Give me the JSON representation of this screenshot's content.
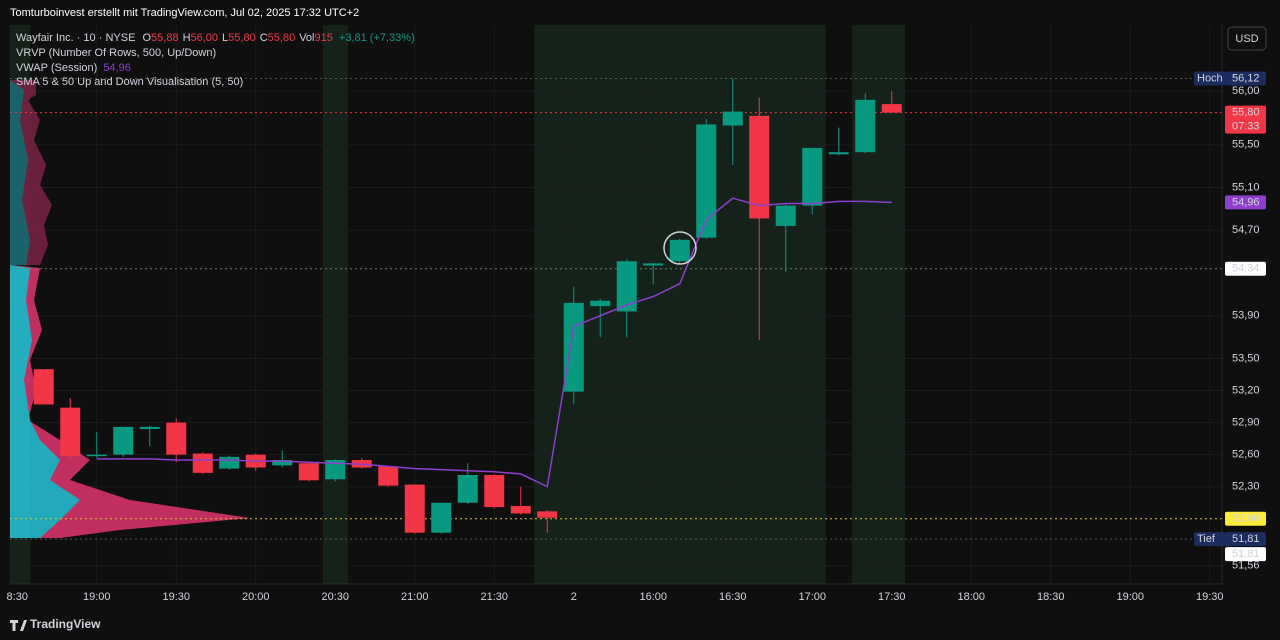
{
  "chart_data": {
    "type": "candlestick",
    "title": "Tomturboinvest erstellt mit TradingView.com, Jul 02, 2025 17:32 UTC+2",
    "currency": "USD",
    "brand": "TradingView",
    "legend": {
      "symbol": "Wayfair Inc. · 10 · NYSE",
      "fields": [
        {
          "key": "O",
          "value": "55,88"
        },
        {
          "key": "H",
          "value": "56,00"
        },
        {
          "key": "L",
          "value": "55,80"
        },
        {
          "key": "C",
          "value": "55,80"
        },
        {
          "key": "Vol",
          "value": "915"
        }
      ],
      "change": "+3,81 (+7,33%)"
    },
    "indicators": [
      {
        "name": "VRVP (Number Of Rows, 500, Up/Down)"
      },
      {
        "name": "VWAP (Session)",
        "value": "54,96"
      },
      {
        "name": "SMA 5 & 50 Up and Down Visualisation (5, 50)"
      }
    ],
    "categories": [
      "8:30",
      null,
      null,
      "19:00",
      null,
      null,
      "19:30",
      null,
      null,
      "20:00",
      null,
      null,
      "20:30",
      null,
      null,
      "21:00",
      null,
      null,
      "21:30",
      null,
      null,
      "2",
      null,
      null,
      "16:00",
      null,
      null,
      "16:30",
      null,
      null,
      "17:00",
      null,
      null,
      "17:30",
      null,
      null,
      "18:00",
      null,
      null,
      "18:30",
      null,
      null,
      "19:00",
      null,
      null,
      "19:30"
    ],
    "open": [
      null,
      53.4,
      53.04,
      52.59,
      52.6,
      52.84,
      52.9,
      52.61,
      52.47,
      52.6,
      52.5,
      52.52,
      52.37,
      52.55,
      52.49,
      52.32,
      51.87,
      52.15,
      52.41,
      52.12,
      52.07,
      53.19,
      53.99,
      53.94,
      54.37,
      54.41,
      54.63,
      55.68,
      55.77,
      54.74,
      54.93,
      55.41,
      55.43,
      55.88,
      null,
      null,
      null,
      null,
      null,
      null,
      null,
      null,
      null,
      null,
      null,
      null
    ],
    "high": [
      null,
      53.4,
      53.13,
      52.81,
      52.86,
      52.87,
      52.94,
      52.62,
      52.59,
      52.61,
      52.64,
      52.53,
      52.56,
      52.57,
      52.49,
      52.32,
      52.15,
      52.52,
      52.42,
      52.3,
      52.08,
      54.17,
      54.06,
      54.43,
      54.39,
      54.62,
      55.74,
      56.12,
      55.94,
      54.95,
      55.47,
      55.66,
      55.98,
      56.0,
      null,
      null,
      null,
      null,
      null,
      null,
      null,
      null,
      null,
      null,
      null,
      null
    ],
    "low": [
      null,
      53.07,
      52.55,
      52.57,
      52.58,
      52.68,
      52.53,
      52.42,
      52.46,
      52.45,
      52.48,
      52.35,
      52.35,
      52.47,
      52.3,
      51.86,
      51.86,
      52.14,
      52.1,
      52.04,
      51.87,
      53.07,
      53.7,
      53.7,
      54.19,
      54.39,
      54.62,
      55.31,
      53.67,
      54.31,
      54.85,
      55.4,
      55.42,
      55.8,
      null,
      null,
      null,
      null,
      null,
      null,
      null,
      null,
      null,
      null,
      null,
      null
    ],
    "close": [
      null,
      53.07,
      52.59,
      52.6,
      52.86,
      52.86,
      52.6,
      52.43,
      52.58,
      52.48,
      52.55,
      52.36,
      52.55,
      52.48,
      52.31,
      51.87,
      52.15,
      52.41,
      52.11,
      52.05,
      52.01,
      54.02,
      54.04,
      54.41,
      54.39,
      54.61,
      55.69,
      55.81,
      54.81,
      54.93,
      55.47,
      55.43,
      55.92,
      55.8,
      null,
      null,
      null,
      null,
      null,
      null,
      null,
      null,
      null,
      null,
      null,
      null
    ],
    "up_color": "#089981",
    "down_color": "#f23645",
    "vwap": {
      "color": "#8e3fd0",
      "values": [
        null,
        null,
        null,
        52.56,
        52.56,
        52.56,
        52.55,
        52.55,
        52.55,
        52.54,
        52.54,
        52.53,
        52.52,
        52.51,
        52.49,
        52.47,
        52.46,
        52.45,
        52.44,
        52.42,
        52.3,
        53.8,
        53.9,
        54.0,
        54.08,
        54.2,
        54.8,
        55.0,
        54.93,
        54.95,
        54.95,
        54.97,
        54.97,
        54.96,
        null,
        null,
        null,
        null,
        null,
        null,
        null,
        null,
        null,
        null,
        null,
        null
      ]
    },
    "ylim": [
      51.39,
      56.62
    ],
    "yticks": [
      {
        "value": 56.0,
        "label": "56,00"
      },
      {
        "value": 55.5,
        "label": "55,50"
      },
      {
        "value": 55.1,
        "label": "55,10"
      },
      {
        "value": 54.7,
        "label": "54,70"
      },
      {
        "value": 53.9,
        "label": "53,90"
      },
      {
        "value": 53.5,
        "label": "53,50"
      },
      {
        "value": 53.2,
        "label": "53,20"
      },
      {
        "value": 52.9,
        "label": "52,90"
      },
      {
        "value": 52.6,
        "label": "52,60"
      },
      {
        "value": 52.3,
        "label": "52,30"
      },
      {
        "value": 51.56,
        "label": "51,56"
      }
    ],
    "grid": true,
    "price_lines": [
      {
        "value": 56.12,
        "label": "56,12",
        "name": "Hoch",
        "bg": "#1c2c5e",
        "fg": "#ffffff",
        "line": "#555555"
      },
      {
        "value": 55.8,
        "label": "55,80",
        "sub": "07:33",
        "bg": "#f23645",
        "fg": "#ffffff",
        "line": "#f23645"
      },
      {
        "value": 54.96,
        "label": "54,96",
        "bg": "#8e3fd0",
        "fg": "#ffffff"
      },
      {
        "value": 54.34,
        "label": "54,34",
        "bg": "#ffffff",
        "fg": "#131722",
        "line": "#777777"
      },
      {
        "value": 52.0,
        "label": "52,00",
        "bg": "#ffeb3b",
        "fg": "#131722",
        "line": "#d8c92e"
      },
      {
        "value": 51.81,
        "label": "51,81",
        "name": "Tief",
        "bg": "#1c2c5e",
        "fg": "#ffffff",
        "line": "#555555"
      },
      {
        "value": 51.81,
        "label": "51,81",
        "bg": "#ffffff",
        "fg": "#131722"
      }
    ]
  }
}
